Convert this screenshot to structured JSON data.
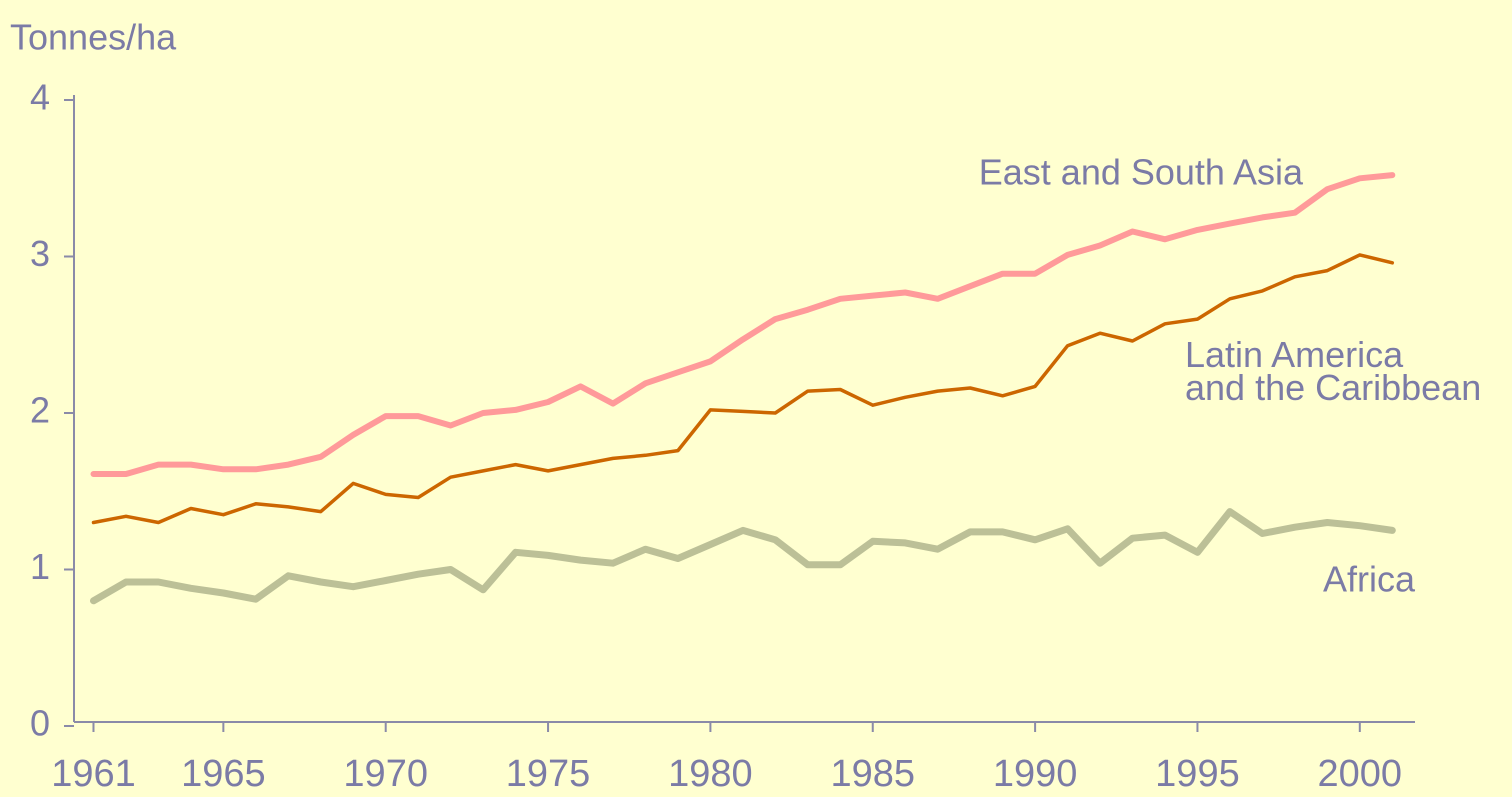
{
  "chart_data": {
    "type": "line",
    "y_label": "Tonnes/ha",
    "x": [
      1961,
      1962,
      1963,
      1964,
      1965,
      1966,
      1967,
      1968,
      1969,
      1970,
      1971,
      1972,
      1973,
      1974,
      1975,
      1976,
      1977,
      1978,
      1979,
      1980,
      1981,
      1982,
      1983,
      1984,
      1985,
      1986,
      1987,
      1988,
      1989,
      1990,
      1991,
      1992,
      1993,
      1994,
      1995,
      1996,
      1997,
      1998,
      1999,
      2000,
      2001
    ],
    "xlim": [
      1960.4,
      2001.7
    ],
    "xticks": [
      1961,
      1965,
      1970,
      1975,
      1980,
      1985,
      1990,
      1995,
      2000
    ],
    "ylim": [
      0,
      4
    ],
    "yticks": [
      0,
      1,
      2,
      3,
      4
    ],
    "series": [
      {
        "name": "East and South Asia",
        "color": "#ff9a9a",
        "values": [
          1.61,
          1.61,
          1.67,
          1.67,
          1.64,
          1.64,
          1.67,
          1.72,
          1.86,
          1.98,
          1.98,
          1.92,
          2.0,
          2.02,
          2.07,
          2.17,
          2.06,
          2.19,
          2.26,
          2.33,
          2.47,
          2.6,
          2.66,
          2.73,
          2.75,
          2.77,
          2.73,
          2.81,
          2.89,
          2.89,
          3.01,
          3.07,
          3.16,
          3.11,
          3.17,
          3.21,
          3.25,
          3.28,
          3.43,
          3.5,
          3.52
        ]
      },
      {
        "name": "Latin America and the Caribbean",
        "color": "#cc6600",
        "values": [
          1.3,
          1.34,
          1.3,
          1.39,
          1.35,
          1.42,
          1.4,
          1.37,
          1.55,
          1.48,
          1.46,
          1.59,
          1.63,
          1.67,
          1.63,
          1.67,
          1.71,
          1.73,
          1.76,
          2.02,
          2.01,
          2.0,
          2.14,
          2.15,
          2.05,
          2.1,
          2.14,
          2.16,
          2.11,
          2.17,
          2.43,
          2.51,
          2.46,
          2.57,
          2.6,
          2.73,
          2.78,
          2.87,
          2.91,
          3.01,
          2.96
        ]
      },
      {
        "name": "Africa",
        "color": "#bcc097",
        "values": [
          0.8,
          0.92,
          0.92,
          0.88,
          0.85,
          0.81,
          0.96,
          0.92,
          0.89,
          0.93,
          0.97,
          1.0,
          0.87,
          1.11,
          1.09,
          1.06,
          1.04,
          1.13,
          1.07,
          1.16,
          1.25,
          1.19,
          1.03,
          1.03,
          1.18,
          1.17,
          1.13,
          1.24,
          1.24,
          1.19,
          1.26,
          1.04,
          1.2,
          1.22,
          1.11,
          1.37,
          1.23,
          1.27,
          1.3,
          1.28,
          1.25
        ]
      }
    ]
  }
}
